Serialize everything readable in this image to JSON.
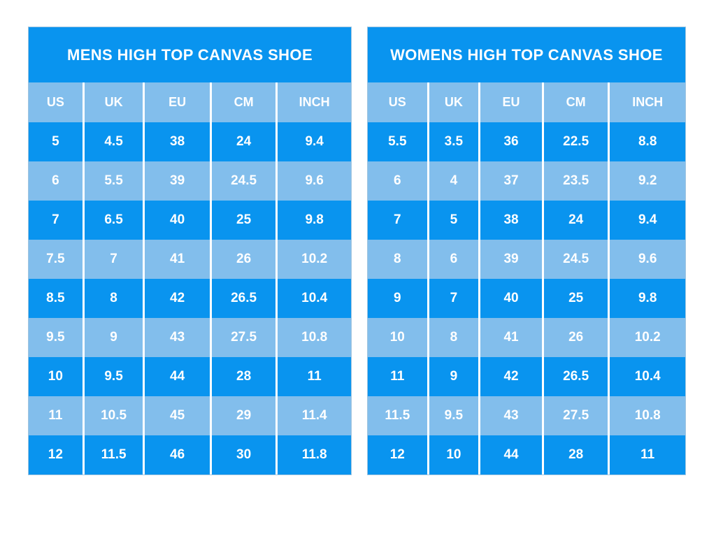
{
  "colors": {
    "dark_blue": "#0994ef",
    "light_blue": "#82beec",
    "grid_line": "#ffffff",
    "text": "#ffffff",
    "page_bg": "#ffffff"
  },
  "chart_data": [
    {
      "type": "table",
      "title": "MENS HIGH TOP CANVAS SHOE",
      "columns": [
        "US",
        "UK",
        "EU",
        "CM",
        "INCH"
      ],
      "rows": [
        [
          "5",
          "4.5",
          "38",
          "24",
          "9.4"
        ],
        [
          "6",
          "5.5",
          "39",
          "24.5",
          "9.6"
        ],
        [
          "7",
          "6.5",
          "40",
          "25",
          "9.8"
        ],
        [
          "7.5",
          "7",
          "41",
          "26",
          "10.2"
        ],
        [
          "8.5",
          "8",
          "42",
          "26.5",
          "10.4"
        ],
        [
          "9.5",
          "9",
          "43",
          "27.5",
          "10.8"
        ],
        [
          "10",
          "9.5",
          "44",
          "28",
          "11"
        ],
        [
          "11",
          "10.5",
          "45",
          "29",
          "11.4"
        ],
        [
          "12",
          "11.5",
          "46",
          "30",
          "11.8"
        ]
      ]
    },
    {
      "type": "table",
      "title": "WOMENS HIGH TOP CANVAS SHOE",
      "columns": [
        "US",
        "UK",
        "EU",
        "CM",
        "INCH"
      ],
      "rows": [
        [
          "5.5",
          "3.5",
          "36",
          "22.5",
          "8.8"
        ],
        [
          "6",
          "4",
          "37",
          "23.5",
          "9.2"
        ],
        [
          "7",
          "5",
          "38",
          "24",
          "9.4"
        ],
        [
          "8",
          "6",
          "39",
          "24.5",
          "9.6"
        ],
        [
          "9",
          "7",
          "40",
          "25",
          "9.8"
        ],
        [
          "10",
          "8",
          "41",
          "26",
          "10.2"
        ],
        [
          "11",
          "9",
          "42",
          "26.5",
          "10.4"
        ],
        [
          "11.5",
          "9.5",
          "43",
          "27.5",
          "10.8"
        ],
        [
          "12",
          "10",
          "44",
          "28",
          "11"
        ]
      ]
    }
  ]
}
